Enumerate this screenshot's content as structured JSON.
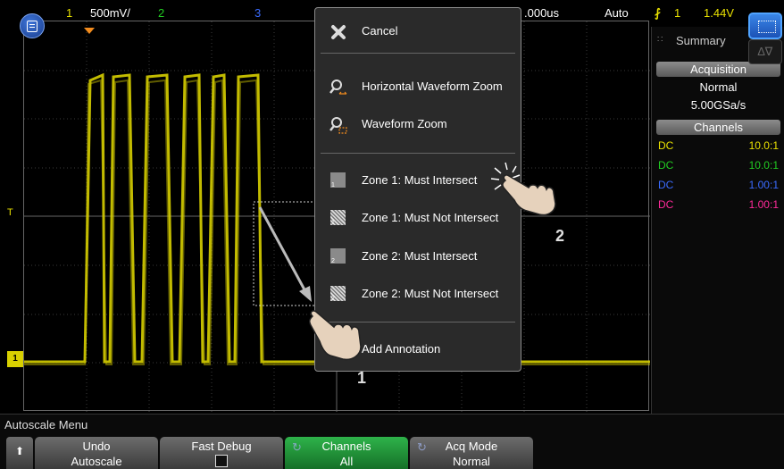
{
  "status_bar": {
    "ch1_label": "1",
    "ch1_scale": "500mV/",
    "ch2_label": "2",
    "ch3_label": "3",
    "timebase": ".000us",
    "trigger_mode": "Auto",
    "trigger_source": "1",
    "trigger_level": "1.44V",
    "colors": {
      "ch1": "#e8e000",
      "ch2": "#22cc22",
      "ch3": "#3a6bff",
      "ch4": "#ff2a9a"
    }
  },
  "markers": {
    "trigger_time": "trigger-marker-icon",
    "t_label": "T",
    "ch1_ground": "1"
  },
  "popup_menu": {
    "items": [
      {
        "label": "Cancel",
        "icon": "close-icon"
      },
      {
        "label": "Horizontal Waveform Zoom",
        "icon": "horizontal-zoom-icon"
      },
      {
        "label": "Waveform Zoom",
        "icon": "zoom-icon"
      },
      {
        "label": "Zone 1: Must Intersect",
        "icon": "zone-1-icon"
      },
      {
        "label": "Zone 1: Must Not Intersect",
        "icon": "zone-1-hatched-icon"
      },
      {
        "label": "Zone 2: Must Intersect",
        "icon": "zone-2-icon"
      },
      {
        "label": "Zone 2: Must Not Intersect",
        "icon": "zone-2-hatched-icon"
      },
      {
        "label": "Add Annotation",
        "icon": "annotation-icon"
      }
    ],
    "zone1_tag": "1",
    "zone2_tag": "2"
  },
  "gestures": {
    "step_1": "1",
    "step_2": "2"
  },
  "right_panel": {
    "title": "Summary",
    "acquisition_header": "Acquisition",
    "acquisition_mode": "Normal",
    "sample_rate": "5.00GSa/s",
    "channels_header": "Channels",
    "channels": [
      {
        "coupling": "DC",
        "probe": "10.0:1",
        "color": "#e8e000"
      },
      {
        "coupling": "DC",
        "probe": "10.0:1",
        "color": "#22cc22"
      },
      {
        "coupling": "DC",
        "probe": "1.00:1",
        "color": "#3a6bff"
      },
      {
        "coupling": "DC",
        "probe": "1.00:1",
        "color": "#ff2a9a"
      }
    ]
  },
  "softkeys": {
    "menu_title": "Autoscale Menu",
    "keys": [
      {
        "line1": "Undo",
        "line2": "Autoscale"
      },
      {
        "line1": "Fast Debug",
        "line2": ""
      },
      {
        "line1": "Channels",
        "line2": "All"
      },
      {
        "line1": "Acq Mode",
        "line2": "Normal"
      }
    ]
  }
}
